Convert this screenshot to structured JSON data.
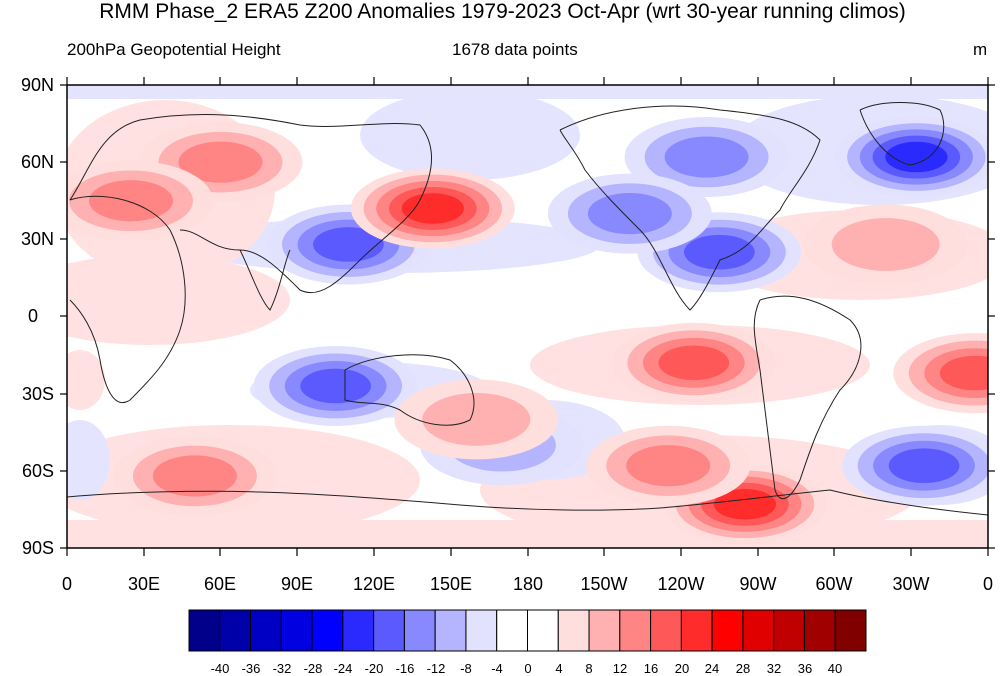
{
  "title": "RMM Phase_2 ERA5 Z200 Anomalies 1979-2023 Oct-Apr (wrt 30-year running climos)",
  "subtitle_left": "200hPa Geopotential Height",
  "subtitle_center": "1678 data points",
  "units": "m",
  "lat_ticks": [
    "90N",
    "60N",
    "30N",
    "0",
    "30S",
    "60S",
    "90S"
  ],
  "lon_ticks": [
    "0",
    "30E",
    "60E",
    "90E",
    "120E",
    "150E",
    "180",
    "150W",
    "120W",
    "90W",
    "60W",
    "30W",
    "0"
  ],
  "colorbar": {
    "labels": [
      "-40",
      "-36",
      "-32",
      "-28",
      "-24",
      "-20",
      "-16",
      "-12",
      "-8",
      "-4",
      "0",
      "4",
      "8",
      "12",
      "16",
      "20",
      "24",
      "28",
      "32",
      "36",
      "40"
    ],
    "colors": [
      "#00008b",
      "#0000a8",
      "#0000c4",
      "#0000e0",
      "#0000ff",
      "#2a2aff",
      "#5a5aff",
      "#8888ff",
      "#b4b4ff",
      "#e2e2ff",
      "#ffffff",
      "#ffffff",
      "#ffdede",
      "#ffb0b0",
      "#ff8484",
      "#ff5858",
      "#ff2c2c",
      "#ff0000",
      "#e00000",
      "#c00000",
      "#a00000",
      "#800000"
    ]
  },
  "anomaly_features": [
    {
      "lon": 250,
      "lat": 62,
      "value": -12
    },
    {
      "lon": 255,
      "lat": 25,
      "value": -16
    },
    {
      "lon": 332,
      "lat": 62,
      "value": -20
    },
    {
      "lon": 220,
      "lat": 40,
      "value": -12
    },
    {
      "lon": 110,
      "lat": 28,
      "value": -16
    },
    {
      "lon": 105,
      "lat": -27,
      "value": -16
    },
    {
      "lon": 335,
      "lat": -58,
      "value": -16
    },
    {
      "lon": 170,
      "lat": -50,
      "value": -8
    },
    {
      "lon": 60,
      "lat": 60,
      "value": 12
    },
    {
      "lon": 25,
      "lat": 45,
      "value": 12
    },
    {
      "lon": 143,
      "lat": 42,
      "value": 20
    },
    {
      "lon": 245,
      "lat": -18,
      "value": 16
    },
    {
      "lon": 355,
      "lat": -22,
      "value": 16
    },
    {
      "lon": 265,
      "lat": -73,
      "value": 20
    },
    {
      "lon": 235,
      "lat": -58,
      "value": 12
    },
    {
      "lon": 50,
      "lat": -62,
      "value": 12
    },
    {
      "lon": 160,
      "lat": -40,
      "value": 8
    },
    {
      "lon": 320,
      "lat": 28,
      "value": 8
    }
  ]
}
